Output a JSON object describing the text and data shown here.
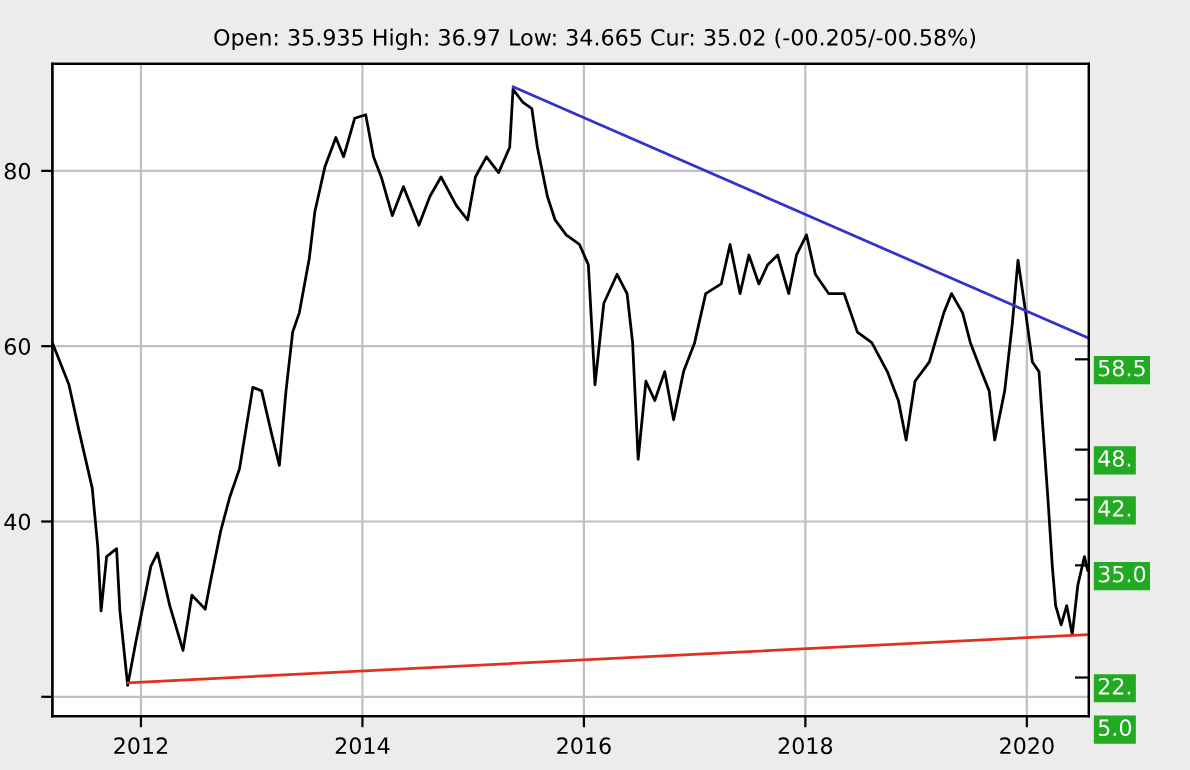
{
  "chart_data": {
    "type": "line",
    "subtitle": "Open: 35.935 High: 36.97 Low: 34.665 Cur: 35.02 (-00.205/-00.58%)",
    "series": [
      {
        "color": "#000000",
        "x": [
          2011.2,
          2011.35,
          2011.44,
          2011.56,
          2011.61,
          2011.64,
          2011.69,
          2011.78,
          2011.81,
          2011.88,
          2011.95,
          2012.09,
          2012.15,
          2012.26,
          2012.38,
          2012.46,
          2012.58,
          2012.63,
          2012.72,
          2012.8,
          2012.89,
          2013.01,
          2013.09,
          2013.18,
          2013.25,
          2013.31,
          2013.37,
          2013.43,
          2013.52,
          2013.57,
          2013.66,
          2013.76,
          2013.83,
          2013.93,
          2014.03,
          2014.1,
          2014.17,
          2014.27,
          2014.37,
          2014.51,
          2014.61,
          2014.71,
          2014.85,
          2014.95,
          2015.02,
          2015.12,
          2015.23,
          2015.33,
          2015.36,
          2015.45,
          2015.53,
          2015.58,
          2015.67,
          2015.74,
          2015.84,
          2015.96,
          2016.04,
          2016.1,
          2016.18,
          2016.3,
          2016.39,
          2016.44,
          2016.49,
          2016.56,
          2016.64,
          2016.73,
          2016.81,
          2016.9,
          2017.0,
          2017.1,
          2017.24,
          2017.32,
          2017.41,
          2017.49,
          2017.58,
          2017.66,
          2017.75,
          2017.85,
          2017.92,
          2018.01,
          2018.09,
          2018.21,
          2018.35,
          2018.47,
          2018.6,
          2018.74,
          2018.84,
          2018.91,
          2018.99,
          2019.12,
          2019.25,
          2019.32,
          2019.42,
          2019.49,
          2019.59,
          2019.66,
          2019.71,
          2019.8,
          2019.87,
          2019.92,
          2019.99,
          2020.05,
          2020.11,
          2020.14,
          2020.19,
          2020.23,
          2020.26,
          2020.31,
          2020.36,
          2020.41,
          2020.46,
          2020.52,
          2020.55
        ],
        "values": [
          60.4,
          55.6,
          50.4,
          43.8,
          37.1,
          29.8,
          36.0,
          36.9,
          29.8,
          21.3,
          26.0,
          34.9,
          36.4,
          30.4,
          25.3,
          31.6,
          30.0,
          33.3,
          38.9,
          42.7,
          46.0,
          55.3,
          54.9,
          50.0,
          46.4,
          54.9,
          61.6,
          63.8,
          70.0,
          75.3,
          80.4,
          83.8,
          81.6,
          86.0,
          86.4,
          81.6,
          79.3,
          74.9,
          78.2,
          73.8,
          77.1,
          79.3,
          76.0,
          74.4,
          79.3,
          81.6,
          79.8,
          82.7,
          89.3,
          87.8,
          87.1,
          82.7,
          77.1,
          74.4,
          72.7,
          71.6,
          69.3,
          55.6,
          64.9,
          68.2,
          66.0,
          60.4,
          47.1,
          56.0,
          53.8,
          57.1,
          51.6,
          57.1,
          60.4,
          66.0,
          67.1,
          71.6,
          66.0,
          70.4,
          67.1,
          69.3,
          70.4,
          66.0,
          70.4,
          72.7,
          68.2,
          66.0,
          66.0,
          61.6,
          60.4,
          57.1,
          53.8,
          49.3,
          56.0,
          58.2,
          63.8,
          66.0,
          63.8,
          60.4,
          57.1,
          54.9,
          49.3,
          54.9,
          62.7,
          69.8,
          63.8,
          58.2,
          57.1,
          51.6,
          42.7,
          34.9,
          30.4,
          28.2,
          30.4,
          27.1,
          32.7,
          36.0,
          34.4
        ]
      },
      {
        "color": "#3333cc",
        "x": [
          2015.36,
          2020.56
        ],
        "values": [
          89.6,
          60.9
        ]
      },
      {
        "color": "#e03020",
        "x": [
          2011.88,
          2020.56
        ],
        "values": [
          21.6,
          27.1
        ]
      }
    ],
    "xlim": [
      2011.2,
      2020.56
    ],
    "ylim": [
      17.8,
      92.2
    ],
    "xticks": [
      2012,
      2014,
      2016,
      2018,
      2020
    ],
    "yticks": [
      {
        "value": 20,
        "label": null
      },
      40,
      60,
      80
    ],
    "grid": true,
    "y2lim": [
      17.8,
      92.2
    ],
    "y2ticks": [
      {
        "value": 58.5,
        "label": "58.5"
      },
      {
        "value": 48.2,
        "label": "48."
      },
      {
        "value": 42.5,
        "label": "42."
      },
      {
        "value": 35.0,
        "label": "35.0"
      },
      {
        "value": 22.2,
        "label": "22."
      }
    ],
    "annotations": [
      "5.0"
    ]
  }
}
